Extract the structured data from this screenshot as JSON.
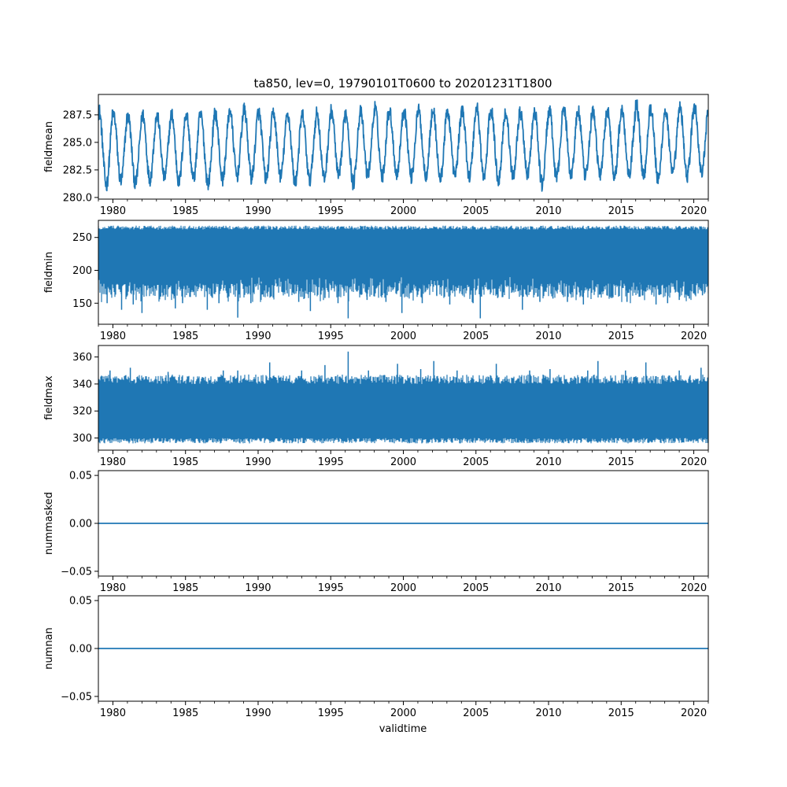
{
  "figure": {
    "title": "ta850, lev=0, 19790101T0600 to 20201231T1800",
    "xlabel": "validtime",
    "line_color": "#1f77b4"
  },
  "chart_data": [
    {
      "type": "line",
      "ylabel": "fieldmean",
      "xlim": [
        1979.0,
        2021.0
      ],
      "ylim": [
        279.85,
        289.35
      ],
      "yticks": [
        280.0,
        282.5,
        285.0,
        287.5
      ],
      "ytick_labels": [
        "280.0",
        "282.5",
        "285.0",
        "287.5"
      ],
      "xticks": [
        1980,
        1985,
        1990,
        1995,
        2000,
        2005,
        2010,
        2015,
        2020
      ],
      "xtick_labels": [
        "1980",
        "1985",
        "1990",
        "1995",
        "2000",
        "2005",
        "2010",
        "2015",
        "2020"
      ],
      "series": [
        {
          "style": "annual-cycle",
          "start": 1979.0,
          "end": 2021.0,
          "annual_minima": [
            280.4,
            280.8,
            280.6,
            281.0,
            281.2,
            280.7,
            281.0,
            280.6,
            281.0,
            281.3,
            281.1,
            281.0,
            281.3,
            280.7,
            280.9,
            281.1,
            281.2,
            280.6,
            281.4,
            281.3,
            281.5,
            281.2,
            281.4,
            281.0,
            281.4,
            281.2,
            281.1,
            280.9,
            281.3,
            281.5,
            280.5,
            281.1,
            281.4,
            281.2,
            281.4,
            281.3,
            281.6,
            281.3,
            280.8,
            281.5,
            281.3,
            281.6,
            282.5
          ],
          "annual_maxima": [
            288.6,
            288.2,
            288.0,
            288.2,
            288.0,
            288.2,
            288.3,
            288.1,
            288.3,
            288.6,
            288.6,
            288.3,
            288.3,
            288.1,
            288.1,
            288.3,
            288.5,
            288.3,
            288.4,
            288.8,
            288.4,
            288.6,
            288.5,
            288.5,
            288.4,
            288.6,
            288.9,
            288.5,
            288.3,
            288.3,
            288.4,
            288.6,
            288.7,
            288.4,
            288.4,
            288.6,
            288.5,
            289.1,
            288.7,
            288.5,
            288.9,
            288.9,
            287.6
          ]
        }
      ]
    },
    {
      "type": "line",
      "ylabel": "fieldmin",
      "xlim": [
        1979.0,
        2021.0
      ],
      "ylim": [
        118.0,
        276.0
      ],
      "yticks": [
        150,
        200,
        250
      ],
      "ytick_labels": [
        "150",
        "200",
        "250"
      ],
      "xticks": [
        1980,
        1985,
        1990,
        1995,
        2000,
        2005,
        2010,
        2015,
        2020
      ],
      "xtick_labels": [
        "1980",
        "1985",
        "1990",
        "1995",
        "2000",
        "2005",
        "2010",
        "2015",
        "2020"
      ],
      "series": [
        {
          "style": "dense-noise",
          "start": 1979.0,
          "end": 2021.0,
          "upper": 268,
          "band_low": 180,
          "spikes": [
            [
              1979.6,
              150
            ],
            [
              1980.6,
              140
            ],
            [
              1981.4,
              148
            ],
            [
              1982.0,
              135
            ],
            [
              1983.3,
              160
            ],
            [
              1984.3,
              142
            ],
            [
              1984.8,
              150
            ],
            [
              1986.5,
              140
            ],
            [
              1987.3,
              150
            ],
            [
              1988.6,
              128
            ],
            [
              1989.5,
              150
            ],
            [
              1990.2,
              155
            ],
            [
              1992.0,
              165
            ],
            [
              1992.8,
              152
            ],
            [
              1993.6,
              138
            ],
            [
              1994.6,
              158
            ],
            [
              1995.5,
              150
            ],
            [
              1996.2,
              127
            ],
            [
              1997.5,
              155
            ],
            [
              1998.8,
              152
            ],
            [
              1999.9,
              135
            ],
            [
              2001.3,
              150
            ],
            [
              2002.3,
              162
            ],
            [
              2003.2,
              148
            ],
            [
              2004.8,
              150
            ],
            [
              2005.3,
              127
            ],
            [
              2006.5,
              158
            ],
            [
              2008.2,
              140
            ],
            [
              2009.4,
              152
            ],
            [
              2010.3,
              157
            ],
            [
              2011.3,
              152
            ],
            [
              2012.4,
              148
            ],
            [
              2013.5,
              163
            ],
            [
              2014.3,
              158
            ],
            [
              2015.4,
              152
            ],
            [
              2016.3,
              160
            ],
            [
              2017.4,
              148
            ],
            [
              2018.2,
              150
            ],
            [
              2019.0,
              155
            ],
            [
              2019.7,
              157
            ],
            [
              2020.6,
              162
            ]
          ]
        }
      ]
    },
    {
      "type": "line",
      "ylabel": "fieldmax",
      "xlim": [
        1979.0,
        2021.0
      ],
      "ylim": [
        291.0,
        368.5
      ],
      "yticks": [
        300,
        320,
        340,
        360
      ],
      "ytick_labels": [
        "300",
        "320",
        "340",
        "360"
      ],
      "xticks": [
        1980,
        1985,
        1990,
        1995,
        2000,
        2005,
        2010,
        2015,
        2020
      ],
      "xtick_labels": [
        "1980",
        "1985",
        "1990",
        "1995",
        "2000",
        "2005",
        "2010",
        "2015",
        "2020"
      ],
      "series": [
        {
          "style": "dense-band",
          "start": 1979.0,
          "end": 2021.0,
          "band": [
            300,
            340
          ],
          "outer": [
            296,
            347
          ],
          "spikes": [
            [
              1979.8,
              350
            ],
            [
              1981.2,
              352
            ],
            [
              1983.8,
              349
            ],
            [
              1987.6,
              350
            ],
            [
              1988.6,
              350
            ],
            [
              1990.8,
              356
            ],
            [
              1993.0,
              350
            ],
            [
              1994.6,
              354
            ],
            [
              1996.2,
              364
            ],
            [
              1997.6,
              350
            ],
            [
              1999.6,
              355
            ],
            [
              2001.2,
              351
            ],
            [
              2002.1,
              357
            ],
            [
              2003.7,
              350
            ],
            [
              2006.4,
              355
            ],
            [
              2008.7,
              350
            ],
            [
              2010.1,
              351
            ],
            [
              2012.7,
              350
            ],
            [
              2013.4,
              357
            ],
            [
              2015.3,
              350
            ],
            [
              2016.7,
              356
            ],
            [
              2019.0,
              350
            ],
            [
              2020.5,
              352
            ]
          ]
        }
      ]
    },
    {
      "type": "line",
      "ylabel": "nummasked",
      "xlim": [
        1979.0,
        2021.0
      ],
      "ylim": [
        -0.055,
        0.055
      ],
      "yticks": [
        -0.05,
        0.0,
        0.05
      ],
      "ytick_labels": [
        "−0.05",
        "0.00",
        "0.05"
      ],
      "xticks": [
        1980,
        1985,
        1990,
        1995,
        2000,
        2005,
        2010,
        2015,
        2020
      ],
      "xtick_labels": [
        "1980",
        "1985",
        "1990",
        "1995",
        "2000",
        "2005",
        "2010",
        "2015",
        "2020"
      ],
      "series": [
        {
          "style": "constant",
          "start": 1979.0,
          "end": 2021.0,
          "value": 0.0
        }
      ]
    },
    {
      "type": "line",
      "ylabel": "numnan",
      "xlim": [
        1979.0,
        2021.0
      ],
      "ylim": [
        -0.055,
        0.055
      ],
      "yticks": [
        -0.05,
        0.0,
        0.05
      ],
      "ytick_labels": [
        "−0.05",
        "0.00",
        "0.05"
      ],
      "xticks": [
        1980,
        1985,
        1990,
        1995,
        2000,
        2005,
        2010,
        2015,
        2020
      ],
      "xtick_labels": [
        "1980",
        "1985",
        "1990",
        "1995",
        "2000",
        "2005",
        "2010",
        "2015",
        "2020"
      ],
      "series": [
        {
          "style": "constant",
          "start": 1979.0,
          "end": 2021.0,
          "value": 0.0
        }
      ]
    }
  ]
}
